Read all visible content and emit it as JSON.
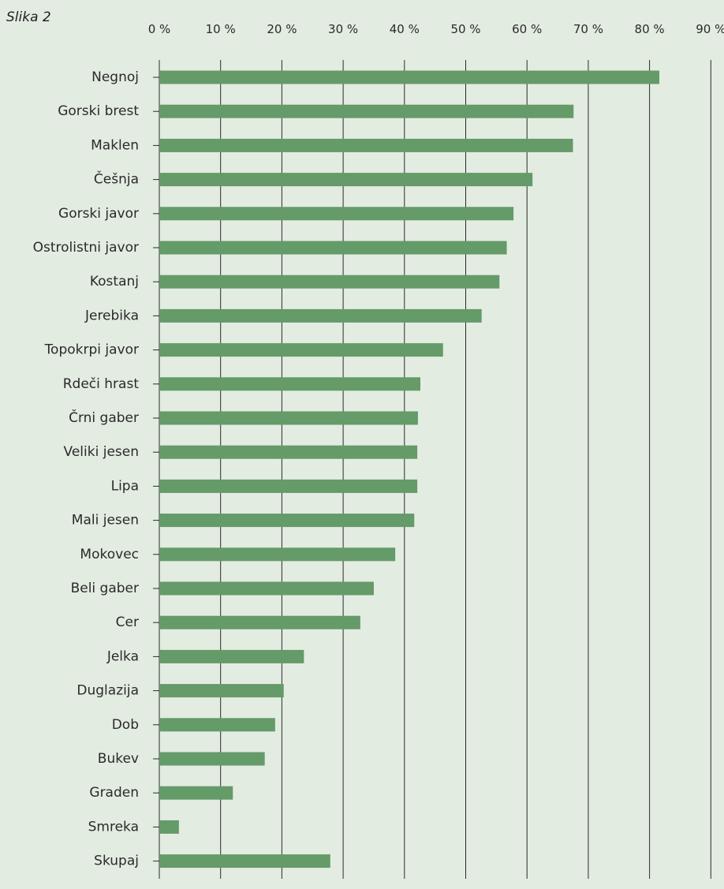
{
  "figure": {
    "label": "Slika 2"
  },
  "chart_data": {
    "type": "bar",
    "orientation": "horizontal",
    "bar_color": "#659a69",
    "grid_color": "#2b2b2b",
    "background_color": "#e3ece1",
    "xlim": [
      0,
      90
    ],
    "x_ticks": [
      0,
      10,
      20,
      30,
      40,
      50,
      60,
      70,
      80,
      90
    ],
    "x_tick_labels": [
      "0 %",
      "10 %",
      "20 %",
      "30 %",
      "40 %",
      "50 %",
      "60 %",
      "70 %",
      "80 %",
      "90 %"
    ],
    "x_axis_position": "top",
    "grid": true,
    "categories": [
      "Negnoj",
      "Gorski brest",
      "Maklen",
      "Češnja",
      "Gorski javor",
      "Ostrolistni javor",
      "Kostanj",
      "Jerebika",
      "Topokrpi javor",
      "Rdeči hrast",
      "Črni gaber",
      "Veliki jesen",
      "Lipa",
      "Mali jesen",
      "Mokovec",
      "Beli gaber",
      "Cer",
      "Jelka",
      "Duglazija",
      "Dob",
      "Bukev",
      "Graden",
      "Smreka",
      "Skupaj"
    ],
    "values": [
      81.6,
      67.6,
      67.5,
      60.9,
      57.8,
      56.7,
      55.5,
      52.6,
      46.3,
      42.6,
      42.2,
      42.1,
      42.1,
      41.6,
      38.5,
      35.0,
      32.8,
      23.6,
      20.3,
      18.9,
      17.2,
      12.0,
      3.2,
      27.9
    ]
  }
}
